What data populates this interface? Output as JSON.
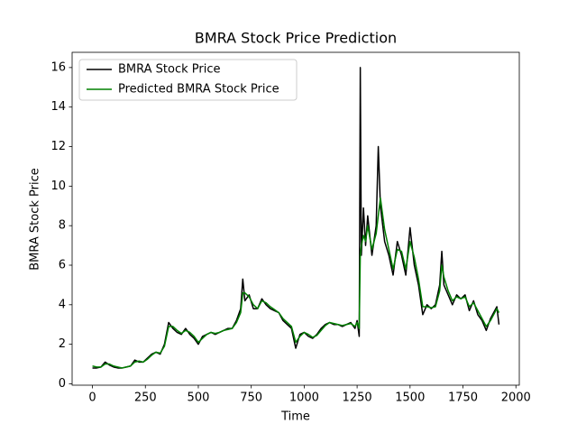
{
  "chart_data": {
    "type": "line",
    "title": "BMRA Stock Price Prediction",
    "x_label": "Time",
    "y_label": "BMRA Stock Price",
    "x": [
      0,
      20,
      40,
      60,
      80,
      100,
      120,
      140,
      160,
      180,
      200,
      220,
      240,
      260,
      280,
      300,
      320,
      340,
      360,
      380,
      400,
      420,
      440,
      460,
      480,
      500,
      520,
      540,
      560,
      580,
      600,
      620,
      640,
      660,
      680,
      700,
      710,
      720,
      740,
      760,
      780,
      800,
      820,
      840,
      860,
      880,
      900,
      920,
      940,
      960,
      980,
      1000,
      1020,
      1040,
      1060,
      1080,
      1100,
      1120,
      1140,
      1160,
      1180,
      1200,
      1220,
      1240,
      1250,
      1260,
      1265,
      1270,
      1280,
      1290,
      1300,
      1320,
      1340,
      1350,
      1360,
      1380,
      1400,
      1420,
      1440,
      1460,
      1480,
      1500,
      1520,
      1540,
      1560,
      1580,
      1600,
      1620,
      1640,
      1650,
      1660,
      1680,
      1700,
      1720,
      1740,
      1760,
      1780,
      1800,
      1820,
      1840,
      1860,
      1880,
      1900,
      1910,
      1920
    ],
    "series": [
      {
        "name": "BMRA Stock Price",
        "color": "#000000",
        "values": [
          0.8,
          0.8,
          0.85,
          1.1,
          0.95,
          0.85,
          0.8,
          0.8,
          0.85,
          0.9,
          1.2,
          1.1,
          1.1,
          1.3,
          1.5,
          1.6,
          1.5,
          2.0,
          3.1,
          2.8,
          2.6,
          2.5,
          2.8,
          2.5,
          2.3,
          2.0,
          2.4,
          2.5,
          2.6,
          2.5,
          2.6,
          2.7,
          2.8,
          2.8,
          3.2,
          3.8,
          5.3,
          4.2,
          4.5,
          3.8,
          3.8,
          4.3,
          4.0,
          3.8,
          3.7,
          3.6,
          3.2,
          3.0,
          2.8,
          1.8,
          2.5,
          2.6,
          2.4,
          2.3,
          2.5,
          2.8,
          3.0,
          3.1,
          3.0,
          3.0,
          2.9,
          3.0,
          3.1,
          2.8,
          3.2,
          2.4,
          16.0,
          6.5,
          8.9,
          7.0,
          8.5,
          6.5,
          8.0,
          12.0,
          9.0,
          7.2,
          6.5,
          5.5,
          7.2,
          6.5,
          5.5,
          7.9,
          6.0,
          5.0,
          3.5,
          4.0,
          3.8,
          4.0,
          5.0,
          6.7,
          5.0,
          4.5,
          4.0,
          4.5,
          4.3,
          4.5,
          3.7,
          4.2,
          3.5,
          3.2,
          2.7,
          3.3,
          3.7,
          3.9,
          3.0
        ]
      },
      {
        "name": "Predicted BMRA Stock Price",
        "color": "#008000",
        "values": [
          0.9,
          0.85,
          0.85,
          1.0,
          1.0,
          0.9,
          0.85,
          0.8,
          0.85,
          0.9,
          1.1,
          1.15,
          1.1,
          1.25,
          1.45,
          1.6,
          1.55,
          1.9,
          2.9,
          2.9,
          2.7,
          2.55,
          2.7,
          2.6,
          2.4,
          2.1,
          2.3,
          2.5,
          2.6,
          2.55,
          2.6,
          2.7,
          2.75,
          2.8,
          3.1,
          3.6,
          4.6,
          4.6,
          4.4,
          4.0,
          3.8,
          4.2,
          4.1,
          3.9,
          3.75,
          3.6,
          3.3,
          3.1,
          2.9,
          2.1,
          2.4,
          2.6,
          2.5,
          2.35,
          2.45,
          2.7,
          2.95,
          3.1,
          3.05,
          3.0,
          2.95,
          3.0,
          3.05,
          2.9,
          3.1,
          2.8,
          6.5,
          7.0,
          7.5,
          7.2,
          8.0,
          6.8,
          7.6,
          8.5,
          9.4,
          7.8,
          6.8,
          5.8,
          6.8,
          6.7,
          5.8,
          7.2,
          6.4,
          5.3,
          3.9,
          3.9,
          3.85,
          3.9,
          4.7,
          6.0,
          5.4,
          4.7,
          4.2,
          4.4,
          4.3,
          4.4,
          3.9,
          4.1,
          3.7,
          3.3,
          2.9,
          3.2,
          3.6,
          3.8,
          3.6
        ]
      }
    ],
    "xlim": [
      -96,
      2016
    ],
    "ylim": [
      -0.07,
      16.77
    ],
    "xticks": [
      0,
      250,
      500,
      750,
      1000,
      1250,
      1500,
      1750,
      2000
    ],
    "yticks": [
      0,
      2,
      4,
      6,
      8,
      10,
      12,
      14,
      16
    ],
    "legend": "upper left"
  }
}
